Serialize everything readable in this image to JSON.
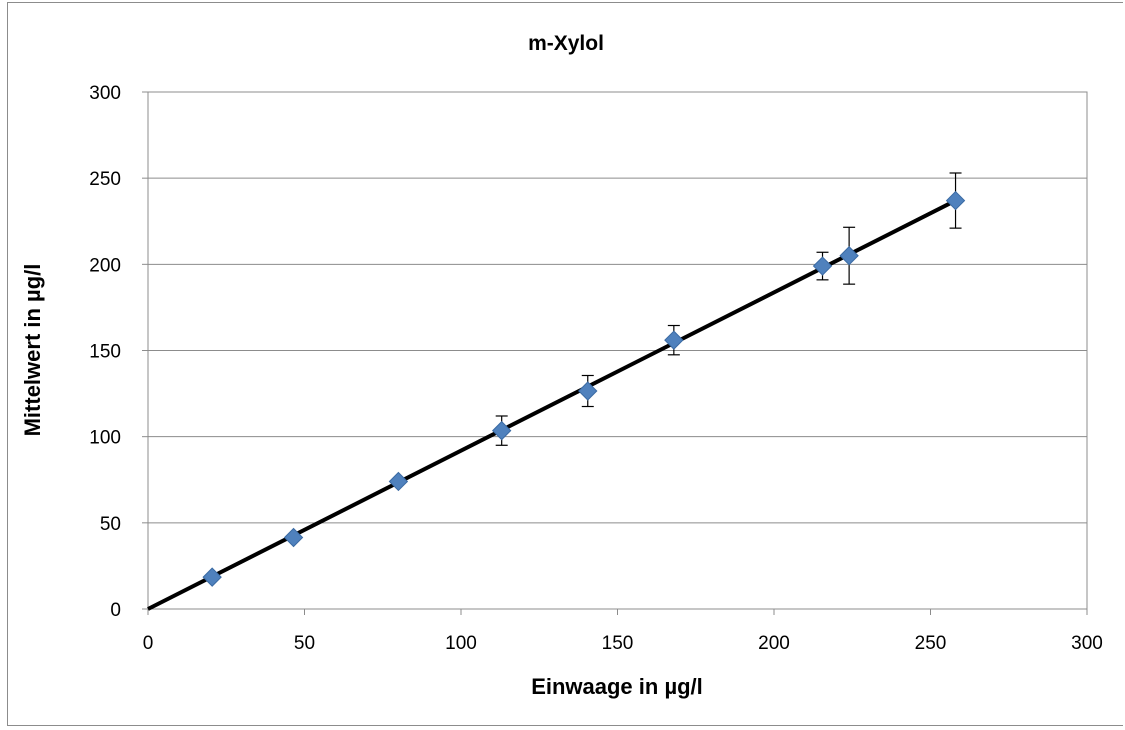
{
  "chart_data": {
    "type": "scatter",
    "title": "m-Xylol",
    "xlabel": "Einwaage in µg/l",
    "ylabel": "Mittelwert in µg/l",
    "xlim": [
      0,
      300
    ],
    "ylim": [
      0,
      300
    ],
    "xticks": [
      0,
      50,
      100,
      150,
      200,
      250,
      300
    ],
    "yticks": [
      0,
      50,
      100,
      150,
      200,
      250,
      300
    ],
    "grid": "horizontal",
    "legend": "none",
    "marker_color": "#4f81bd",
    "line_color": "#000000",
    "trendline": {
      "type": "linear",
      "from": [
        0,
        0
      ],
      "to": [
        258,
        237
      ]
    },
    "series": [
      {
        "points": [
          {
            "x": 20.5,
            "y": 18.5,
            "err": 0
          },
          {
            "x": 46.5,
            "y": 41.5,
            "err": 0
          },
          {
            "x": 80,
            "y": 74,
            "err": 0
          },
          {
            "x": 113,
            "y": 103.5,
            "err": 8.5
          },
          {
            "x": 140.5,
            "y": 126.5,
            "err": 9
          },
          {
            "x": 168,
            "y": 156,
            "err": 8.5
          },
          {
            "x": 215.5,
            "y": 199,
            "err": 8
          },
          {
            "x": 224,
            "y": 205,
            "err": 16.5
          },
          {
            "x": 258,
            "y": 237,
            "err": 16
          }
        ]
      }
    ]
  }
}
